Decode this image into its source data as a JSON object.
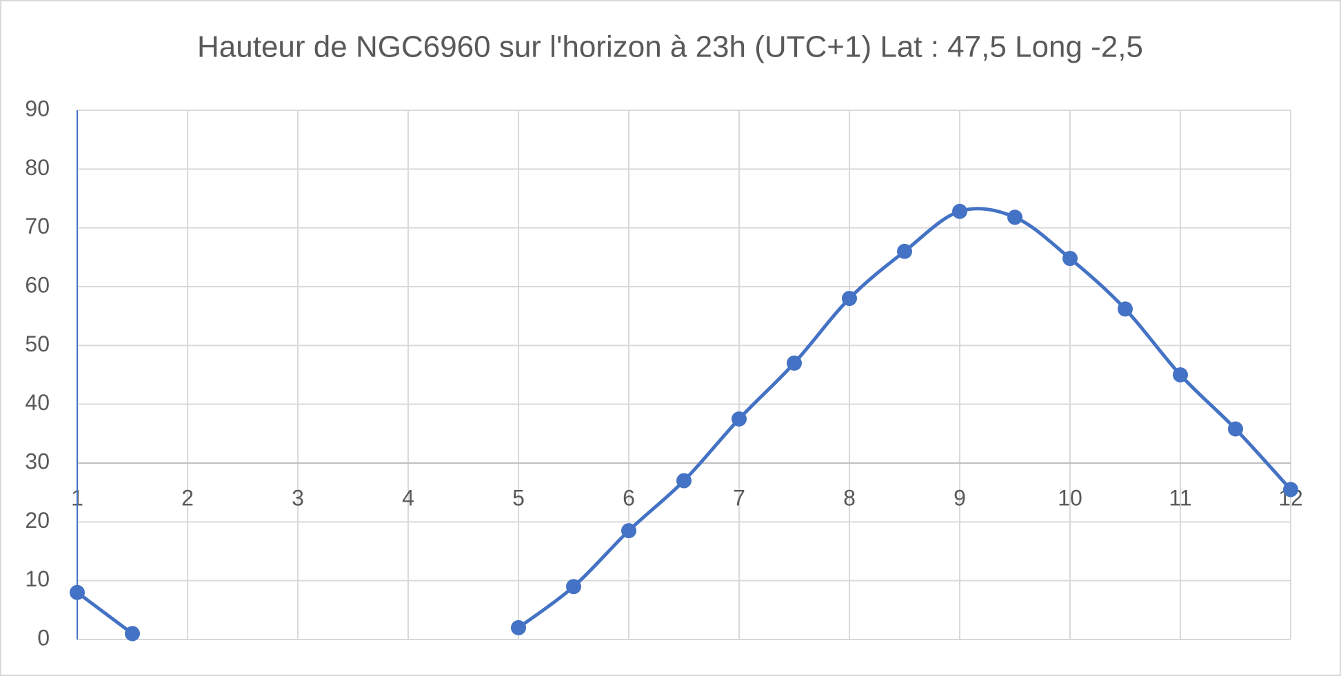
{
  "chart_data": {
    "type": "line",
    "title": "Hauteur de NGC6960 sur l'horizon à 23h (UTC+1) Lat : 47,5 Long -2,5",
    "x": [
      1,
      1.5,
      2,
      2.5,
      3,
      3.5,
      4,
      4.5,
      5,
      5.5,
      6,
      6.5,
      7,
      7.5,
      8,
      8.5,
      9,
      9.5,
      10,
      10.5,
      11,
      11.5,
      12
    ],
    "series": [
      {
        "color": "#4472c4",
        "values": [
          8,
          1,
          null,
          null,
          null,
          null,
          null,
          null,
          2,
          9,
          18.5,
          27,
          37.5,
          47,
          58,
          66,
          72.8,
          71.8,
          64.8,
          56.2,
          45,
          35.8,
          25.5
        ]
      }
    ],
    "xlim": [
      1,
      12
    ],
    "xticks": [
      1,
      2,
      3,
      4,
      5,
      6,
      7,
      8,
      9,
      10,
      11,
      12
    ],
    "ylim": [
      0,
      90
    ],
    "yticks": [
      0,
      10,
      20,
      30,
      40,
      50,
      60,
      70,
      80,
      90
    ],
    "x_axis_crossing": 30,
    "grid": true,
    "smooth": true,
    "markers": true
  }
}
